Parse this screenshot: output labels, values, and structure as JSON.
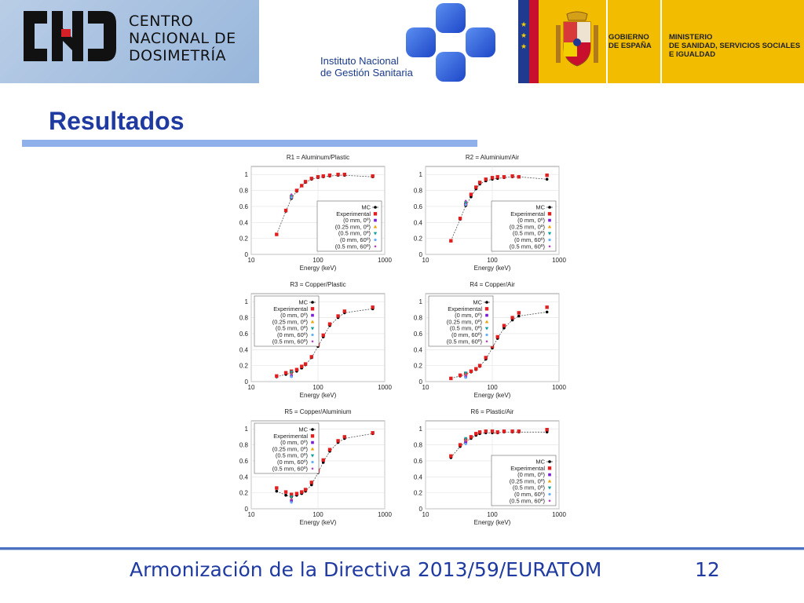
{
  "header": {
    "cnd": {
      "line1": "CENTRO",
      "line2": "NACIONAL DE",
      "line3": "DOSIMETRÍA"
    },
    "ingesa": {
      "line1": "Instituto Nacional",
      "line2": "de Gestión Sanitaria"
    },
    "gobierno": {
      "line1": "GOBIERNO",
      "line2": "DE ESPAÑA"
    },
    "ministerio": {
      "line1": "MINISTERIO",
      "line2": "DE SANIDAD, SERVICIOS SOCIALES",
      "line3": "E IGUALDAD"
    },
    "colors": {
      "flag_blue": "#1f3a8f",
      "flag_red": "#c8102e",
      "gov_yellow": "#f2bd00",
      "ingesa_blue": "#2d5fd6"
    }
  },
  "title": "Resultados",
  "footer": {
    "text": "Armonización de la Directiva 2013/59/EURATOM",
    "page": "12"
  },
  "legend_labels": [
    "MC",
    "Experimental",
    "(0 mm,    0º)",
    "(0.25 mm, 0º)",
    "(0.5 mm,   0º)",
    "(0 mm,   60º)",
    "(0.5 mm, 60º)"
  ],
  "legend_colors": [
    "#000000",
    "#e02020",
    "#7a1fd0",
    "#f0a000",
    "#10a0a0",
    "#60b0ff",
    "#b040c0"
  ],
  "chart_data": [
    {
      "type": "scatter",
      "title": "R1 = Aluminum/Plastic",
      "xlabel": "Energy (keV)",
      "xscale": "log",
      "xlim": [
        10,
        1000
      ],
      "ylim": [
        0,
        1.1
      ],
      "x_ticks": [
        "10",
        "100",
        "1000"
      ],
      "y_ticks": [
        "0",
        "0.2",
        "0.4",
        "0.6",
        "0.8",
        "1"
      ],
      "legend": "right",
      "series": [
        {
          "name": "MC",
          "x": [
            24,
            33,
            40,
            48,
            57,
            65,
            80,
            100,
            120,
            150,
            200,
            250,
            660
          ],
          "y": [
            0.25,
            0.54,
            0.7,
            0.79,
            0.86,
            0.9,
            0.94,
            0.96,
            0.97,
            0.98,
            0.99,
            0.99,
            0.97
          ]
        },
        {
          "name": "Experimental",
          "x": [
            24,
            33,
            40,
            48,
            57,
            65,
            80,
            100,
            120,
            150,
            200,
            250,
            660
          ],
          "y": [
            0.25,
            0.55,
            0.72,
            0.8,
            0.86,
            0.91,
            0.95,
            0.97,
            0.98,
            0.99,
            1.0,
            1.0,
            0.98
          ]
        },
        {
          "name": "(0 mm, 0º)",
          "x": [
            40
          ],
          "y": [
            0.72
          ]
        },
        {
          "name": "(0.25 mm, 0º)",
          "x": [
            40
          ],
          "y": [
            0.74
          ]
        },
        {
          "name": "(0.5 mm, 0º)",
          "x": [
            40
          ],
          "y": [
            0.73
          ]
        },
        {
          "name": "(0 mm, 60º)",
          "x": [
            40
          ],
          "y": [
            0.71
          ]
        },
        {
          "name": "(0.5 mm, 60º)",
          "x": [
            40
          ],
          "y": [
            0.75
          ]
        }
      ]
    },
    {
      "type": "scatter",
      "title": "R2 = Aluminium/Air",
      "xlabel": "Energy (keV)",
      "xscale": "log",
      "xlim": [
        10,
        1000
      ],
      "ylim": [
        0,
        1.1
      ],
      "x_ticks": [
        "10",
        "100",
        "1000"
      ],
      "y_ticks": [
        "0",
        "0.2",
        "0.4",
        "0.6",
        "0.8",
        "1"
      ],
      "legend": "right",
      "series": [
        {
          "name": "MC",
          "x": [
            24,
            33,
            40,
            48,
            57,
            65,
            80,
            100,
            120,
            150,
            200,
            250,
            660
          ],
          "y": [
            0.17,
            0.44,
            0.61,
            0.72,
            0.82,
            0.88,
            0.92,
            0.94,
            0.95,
            0.96,
            0.97,
            0.97,
            0.94
          ]
        },
        {
          "name": "Experimental",
          "x": [
            24,
            33,
            40,
            48,
            57,
            65,
            80,
            100,
            120,
            150,
            200,
            250,
            660
          ],
          "y": [
            0.17,
            0.45,
            0.63,
            0.75,
            0.84,
            0.9,
            0.94,
            0.96,
            0.97,
            0.97,
            0.98,
            0.97,
            0.99
          ]
        },
        {
          "name": "(0 mm, 0º)",
          "x": [
            40
          ],
          "y": [
            0.64
          ]
        },
        {
          "name": "(0.25 mm, 0º)",
          "x": [
            40
          ],
          "y": [
            0.66
          ]
        },
        {
          "name": "(0.5 mm, 0º)",
          "x": [
            40
          ],
          "y": [
            0.65
          ]
        },
        {
          "name": "(0 mm, 60º)",
          "x": [
            40
          ],
          "y": [
            0.62
          ]
        },
        {
          "name": "(0.5 mm, 60º)",
          "x": [
            40
          ],
          "y": [
            0.67
          ]
        }
      ]
    },
    {
      "type": "scatter",
      "title": "R3 = Copper/Plastic",
      "xlabel": "Energy (keV)",
      "xscale": "log",
      "xlim": [
        10,
        1000
      ],
      "ylim": [
        0,
        1.1
      ],
      "x_ticks": [
        "10",
        "100",
        "1000"
      ],
      "y_ticks": [
        "0",
        "0.2",
        "0.4",
        "0.6",
        "0.8",
        "1"
      ],
      "legend": "left",
      "series": [
        {
          "name": "MC",
          "x": [
            24,
            33,
            40,
            48,
            57,
            65,
            80,
            100,
            120,
            150,
            200,
            250,
            660
          ],
          "y": [
            0.06,
            0.09,
            0.11,
            0.13,
            0.17,
            0.21,
            0.3,
            0.44,
            0.56,
            0.7,
            0.8,
            0.86,
            0.91
          ]
        },
        {
          "name": "Experimental",
          "x": [
            24,
            33,
            40,
            48,
            57,
            65,
            80,
            100,
            120,
            150,
            200,
            250,
            660
          ],
          "y": [
            0.07,
            0.11,
            0.13,
            0.15,
            0.19,
            0.22,
            0.31,
            0.46,
            0.58,
            0.72,
            0.82,
            0.88,
            0.93
          ]
        },
        {
          "name": "(0 mm, 0º)",
          "x": [
            40
          ],
          "y": [
            0.07
          ]
        },
        {
          "name": "(0.25 mm, 0º)",
          "x": [
            40
          ],
          "y": [
            0.1
          ]
        },
        {
          "name": "(0.5 mm, 0º)",
          "x": [
            40
          ],
          "y": [
            0.12
          ]
        },
        {
          "name": "(0 mm, 60º)",
          "x": [
            40
          ],
          "y": [
            0.06
          ]
        },
        {
          "name": "(0.5 mm, 60º)",
          "x": [
            40
          ],
          "y": [
            0.09
          ]
        }
      ]
    },
    {
      "type": "scatter",
      "title": "R4 = Copper/Air",
      "xlabel": "Energy (keV)",
      "xscale": "log",
      "xlim": [
        10,
        1000
      ],
      "ylim": [
        0,
        1.1
      ],
      "x_ticks": [
        "10",
        "100",
        "1000"
      ],
      "y_ticks": [
        "0",
        "0.2",
        "0.4",
        "0.6",
        "0.8",
        "1"
      ],
      "legend": "left",
      "series": [
        {
          "name": "MC",
          "x": [
            24,
            33,
            40,
            48,
            57,
            65,
            80,
            100,
            120,
            150,
            200,
            250,
            660
          ],
          "y": [
            0.04,
            0.07,
            0.09,
            0.12,
            0.15,
            0.19,
            0.28,
            0.42,
            0.54,
            0.67,
            0.77,
            0.82,
            0.87
          ]
        },
        {
          "name": "Experimental",
          "x": [
            24,
            33,
            40,
            48,
            57,
            65,
            80,
            100,
            120,
            150,
            200,
            250,
            660
          ],
          "y": [
            0.04,
            0.08,
            0.1,
            0.13,
            0.16,
            0.2,
            0.3,
            0.44,
            0.56,
            0.7,
            0.8,
            0.86,
            0.93
          ]
        },
        {
          "name": "(0 mm, 0º)",
          "x": [
            40
          ],
          "y": [
            0.06
          ]
        },
        {
          "name": "(0.25 mm, 0º)",
          "x": [
            40
          ],
          "y": [
            0.09
          ]
        },
        {
          "name": "(0.5 mm, 0º)",
          "x": [
            40
          ],
          "y": [
            0.11
          ]
        },
        {
          "name": "(0 mm, 60º)",
          "x": [
            40
          ],
          "y": [
            0.05
          ]
        },
        {
          "name": "(0.5 mm, 60º)",
          "x": [
            40
          ],
          "y": [
            0.08
          ]
        }
      ]
    },
    {
      "type": "scatter",
      "title": "R5 = Copper/Aluminium",
      "xlabel": "Energy (keV)",
      "xscale": "log",
      "xlim": [
        10,
        1000
      ],
      "ylim": [
        0,
        1.1
      ],
      "x_ticks": [
        "10",
        "100",
        "1000"
      ],
      "y_ticks": [
        "0",
        "0.2",
        "0.4",
        "0.6",
        "0.8",
        "1"
      ],
      "legend": "left",
      "series": [
        {
          "name": "MC",
          "x": [
            24,
            33,
            40,
            48,
            57,
            65,
            80,
            100,
            120,
            150,
            200,
            250,
            660
          ],
          "y": [
            0.22,
            0.17,
            0.15,
            0.17,
            0.19,
            0.22,
            0.3,
            0.45,
            0.58,
            0.72,
            0.83,
            0.88,
            0.94
          ]
        },
        {
          "name": "Experimental",
          "x": [
            24,
            33,
            40,
            48,
            57,
            65,
            80,
            100,
            120,
            150,
            200,
            250,
            660
          ],
          "y": [
            0.26,
            0.21,
            0.18,
            0.19,
            0.21,
            0.24,
            0.33,
            0.48,
            0.61,
            0.74,
            0.85,
            0.9,
            0.95
          ]
        },
        {
          "name": "(0 mm, 0º)",
          "x": [
            40
          ],
          "y": [
            0.1
          ]
        },
        {
          "name": "(0.25 mm, 0º)",
          "x": [
            40
          ],
          "y": [
            0.13
          ]
        },
        {
          "name": "(0.5 mm, 0º)",
          "x": [
            40
          ],
          "y": [
            0.15
          ]
        },
        {
          "name": "(0 mm, 60º)",
          "x": [
            40
          ],
          "y": [
            0.08
          ]
        },
        {
          "name": "(0.5 mm, 60º)",
          "x": [
            40
          ],
          "y": [
            0.12
          ]
        }
      ]
    },
    {
      "type": "scatter",
      "title": "R6 = Plastic/Air",
      "xlabel": "Energy (keV)",
      "xscale": "log",
      "xlim": [
        10,
        1000
      ],
      "ylim": [
        0,
        1.1
      ],
      "x_ticks": [
        "10",
        "100",
        "1000"
      ],
      "y_ticks": [
        "0",
        "0.2",
        "0.4",
        "0.6",
        "0.8",
        "1"
      ],
      "legend": "right",
      "series": [
        {
          "name": "MC",
          "x": [
            24,
            33,
            40,
            48,
            57,
            65,
            80,
            100,
            120,
            150,
            200,
            250,
            660
          ],
          "y": [
            0.64,
            0.78,
            0.84,
            0.88,
            0.92,
            0.94,
            0.95,
            0.95,
            0.95,
            0.96,
            0.96,
            0.96,
            0.96
          ]
        },
        {
          "name": "Experimental",
          "x": [
            24,
            33,
            40,
            48,
            57,
            65,
            80,
            100,
            120,
            150,
            200,
            250,
            660
          ],
          "y": [
            0.66,
            0.8,
            0.86,
            0.9,
            0.94,
            0.96,
            0.97,
            0.97,
            0.96,
            0.97,
            0.97,
            0.97,
            0.99
          ]
        },
        {
          "name": "(0 mm, 0º)",
          "x": [
            40
          ],
          "y": [
            0.83
          ]
        },
        {
          "name": "(0.25 mm, 0º)",
          "x": [
            40
          ],
          "y": [
            0.86
          ]
        },
        {
          "name": "(0.5 mm, 0º)",
          "x": [
            40
          ],
          "y": [
            0.88
          ]
        },
        {
          "name": "(0 mm, 60º)",
          "x": [
            40
          ],
          "y": [
            0.81
          ]
        },
        {
          "name": "(0.5 mm, 60º)",
          "x": [
            40
          ],
          "y": [
            0.85
          ]
        }
      ]
    }
  ]
}
